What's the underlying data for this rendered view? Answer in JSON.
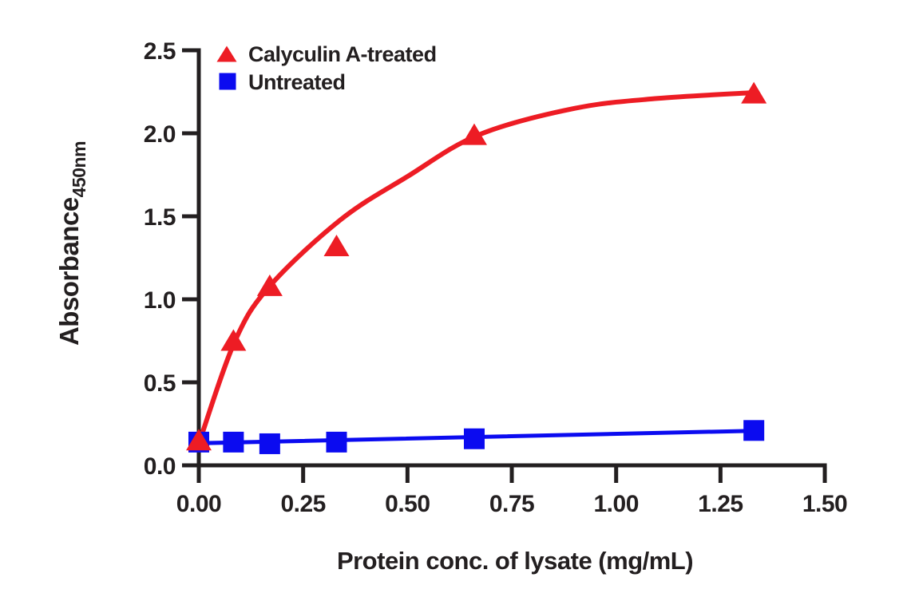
{
  "figure": {
    "background": "#ffffff",
    "text_color": "#231F20",
    "axis_color": "#231F20",
    "accent_red": "#ED1C24",
    "accent_blue": "#0B0BF0"
  },
  "chart_data": {
    "type": "scatter",
    "title": "",
    "xlabel": "Protein conc. of lysate (mg/mL)",
    "ylabel": {
      "text": "Absorbance",
      "subscript": "450nm"
    },
    "xlim": [
      0,
      1.5
    ],
    "ylim": [
      0,
      2.5
    ],
    "grid": false,
    "x_ticks": {
      "values": [
        0,
        0.25,
        0.5,
        0.75,
        1.0,
        1.25,
        1.5
      ],
      "labels": [
        "0.00",
        "0.25",
        "0.50",
        "0.75",
        "1.00",
        "1.25",
        "1.50"
      ]
    },
    "y_ticks": {
      "values": [
        0,
        0.5,
        1.0,
        1.5,
        2.0,
        2.5
      ],
      "labels": [
        "0.0",
        "0.5",
        "1.0",
        "1.5",
        "2.0",
        "2.5"
      ]
    },
    "legend": {
      "position": "top-left-inside"
    },
    "series": [
      {
        "name": "Calyculin A-treated",
        "marker": "triangle",
        "color": "#ED1C24",
        "points": [
          [
            0.0,
            0.15
          ],
          [
            0.083,
            0.75
          ],
          [
            0.17,
            1.08
          ],
          [
            0.33,
            1.32
          ],
          [
            0.66,
            1.99
          ],
          [
            1.33,
            2.24
          ]
        ],
        "fit_curve": [
          [
            0.0,
            0.13
          ],
          [
            0.086,
            0.745
          ],
          [
            0.17,
            1.08
          ],
          [
            0.34,
            1.48
          ],
          [
            0.5,
            1.74
          ],
          [
            0.67,
            1.99
          ],
          [
            0.9,
            2.15
          ],
          [
            1.1,
            2.21
          ],
          [
            1.33,
            2.245
          ]
        ]
      },
      {
        "name": "Untreated",
        "marker": "square",
        "color": "#0B0BF0",
        "points": [
          [
            0.0,
            0.14
          ],
          [
            0.083,
            0.14
          ],
          [
            0.17,
            0.13
          ],
          [
            0.33,
            0.14
          ],
          [
            0.66,
            0.16
          ],
          [
            1.33,
            0.21
          ]
        ],
        "fit_curve": [
          [
            0.0,
            0.133
          ],
          [
            1.33,
            0.208
          ]
        ]
      }
    ]
  }
}
